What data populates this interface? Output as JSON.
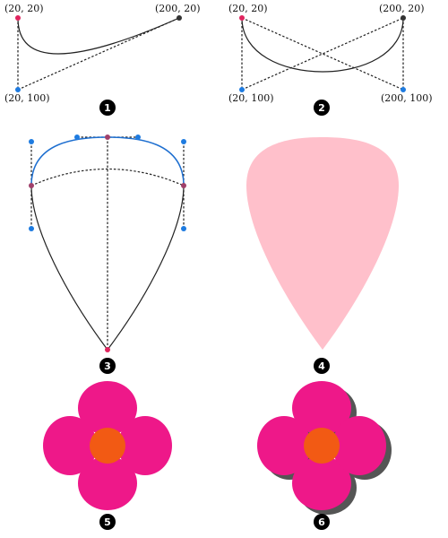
{
  "panel1": {
    "start_label": "(20, 20)",
    "end_label": "(200, 20)",
    "control_label": "(20, 100)",
    "step": "1"
  },
  "panel2": {
    "start_label": "(20, 20)",
    "end_label": "(200, 20)",
    "control1_label": "(20, 100)",
    "control2_label": "(200, 100)",
    "step": "2"
  },
  "panel3": {
    "step": "3"
  },
  "panel4": {
    "step": "4"
  },
  "panel5": {
    "step": "5"
  },
  "panel6": {
    "step": "6"
  },
  "colors": {
    "endpoint_pink": "#e0245e",
    "endpoint_dark": "#333333",
    "control_blue": "#1e7be0",
    "curve_blue": "#1e6fd0",
    "petal_pink": "#ffc0cb",
    "flower_magenta": "#ee1889",
    "flower_center": "#f25a14",
    "shadow": "#555555"
  }
}
